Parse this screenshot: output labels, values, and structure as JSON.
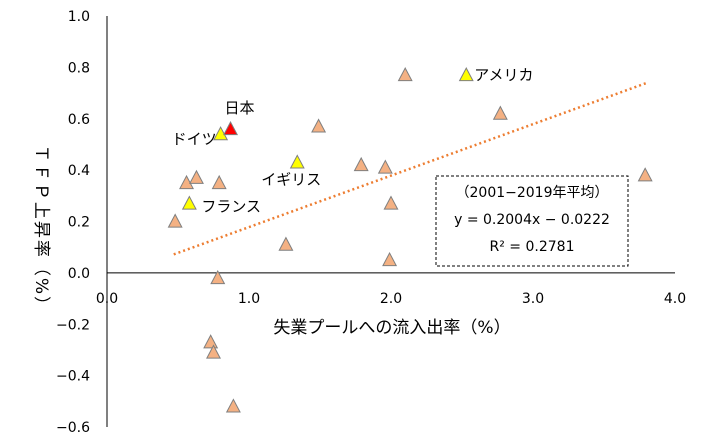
{
  "chart_data": {
    "type": "scatter",
    "xlabel": "失業プールへの流入出率（%）",
    "ylabel": "ＴＦＰ上昇率（%）",
    "xlim": [
      0.0,
      4.0
    ],
    "ylim": [
      -0.6,
      1.0
    ],
    "x_ticks": [
      "0.0",
      "1.0",
      "2.0",
      "3.0",
      "4.0"
    ],
    "y_ticks": [
      "1.0",
      "0.8",
      "0.6",
      "0.4",
      "0.2",
      "0.0",
      "−0.2",
      "−0.4",
      "−0.6"
    ],
    "x_tick_values": [
      0,
      1,
      2,
      3,
      4
    ],
    "y_tick_values": [
      1.0,
      0.8,
      0.6,
      0.4,
      0.2,
      0.0,
      -0.2,
      -0.4,
      -0.6
    ],
    "colors": {
      "default": "#f4b183",
      "highlight": "#ffff00",
      "japan": "#ff0000",
      "edge": "#7f7f7f",
      "trend": "#ed7d31"
    },
    "points": [
      {
        "x": 0.48,
        "y": 0.2,
        "group": "default"
      },
      {
        "x": 0.56,
        "y": 0.35,
        "group": "default"
      },
      {
        "x": 0.58,
        "y": 0.27,
        "group": "highlight",
        "label": "フランス"
      },
      {
        "x": 0.63,
        "y": 0.37,
        "group": "default"
      },
      {
        "x": 0.73,
        "y": -0.27,
        "group": "default"
      },
      {
        "x": 0.75,
        "y": -0.31,
        "group": "default"
      },
      {
        "x": 0.78,
        "y": -0.02,
        "group": "default"
      },
      {
        "x": 0.79,
        "y": 0.35,
        "group": "default"
      },
      {
        "x": 0.8,
        "y": 0.54,
        "group": "highlight",
        "label": "ドイツ"
      },
      {
        "x": 0.87,
        "y": 0.56,
        "group": "japan",
        "label": "日本"
      },
      {
        "x": 0.89,
        "y": -0.52,
        "group": "default"
      },
      {
        "x": 1.26,
        "y": 0.11,
        "group": "default"
      },
      {
        "x": 1.34,
        "y": 0.43,
        "group": "highlight",
        "label": "イギリス"
      },
      {
        "x": 1.49,
        "y": 0.57,
        "group": "default"
      },
      {
        "x": 1.79,
        "y": 0.42,
        "group": "default"
      },
      {
        "x": 1.96,
        "y": 0.41,
        "group": "default"
      },
      {
        "x": 1.99,
        "y": 0.05,
        "group": "default"
      },
      {
        "x": 2.0,
        "y": 0.27,
        "group": "default"
      },
      {
        "x": 2.1,
        "y": 0.77,
        "group": "default"
      },
      {
        "x": 2.53,
        "y": 0.77,
        "group": "highlight",
        "label": "アメリカ"
      },
      {
        "x": 2.77,
        "y": 0.62,
        "group": "default"
      },
      {
        "x": 3.79,
        "y": 0.38,
        "group": "default"
      }
    ],
    "trendline": {
      "slope": 0.2004,
      "intercept": -0.0222,
      "x_range": [
        0.47,
        3.8
      ]
    },
    "annotation": [
      "（2001−2019年平均）",
      "y = 0.2004x − 0.0222",
      "R² = 0.2781"
    ]
  }
}
